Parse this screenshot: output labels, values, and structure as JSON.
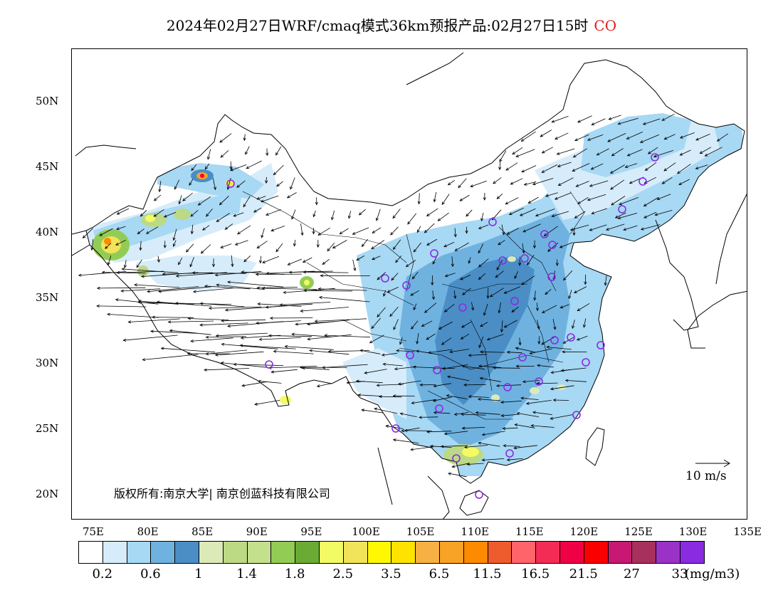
{
  "title": {
    "main": "2024年02月27日WRF/cmaq模式36km预报产品:02月27日15时",
    "pollutant": "CO",
    "pollutant_color": "#e02020"
  },
  "map": {
    "lat_ticks": [
      "50N",
      "45N",
      "40N",
      "35N",
      "30N",
      "25N",
      "20N"
    ],
    "lon_ticks": [
      "75E",
      "80E",
      "85E",
      "90E",
      "95E",
      "100E",
      "105E",
      "110E",
      "115E",
      "120E",
      "125E",
      "130E",
      "135E"
    ],
    "copyright": "版权所有:南京大学| 南京创蓝科技有限公司",
    "wind_scale_label": "10 m/s",
    "station_marker_color": "#8a2be2"
  },
  "colorbar": {
    "colors": [
      "#ffffff",
      "#d6ecfa",
      "#a7d8f4",
      "#6fb2e0",
      "#4a8ec5",
      "#dceab8",
      "#bcd985",
      "#c3e08d",
      "#93cc55",
      "#6aaa35",
      "#f2fb63",
      "#f1e45a",
      "#fff800",
      "#ffe300",
      "#f7b043",
      "#f8a226",
      "#fd8a00",
      "#ee5b2d",
      "#ff646b",
      "#f42c55",
      "#f00044",
      "#fb0000",
      "#c81873",
      "#a8305c",
      "#9a32c8",
      "#8a2be2"
    ],
    "labels": [
      "0.2",
      "0.6",
      "1",
      "1.4",
      "1.8",
      "2.5",
      "3.5",
      "6.5",
      "11.5",
      "16.5",
      "21.5",
      "27",
      "33"
    ],
    "unit": "(mg/m3)"
  }
}
